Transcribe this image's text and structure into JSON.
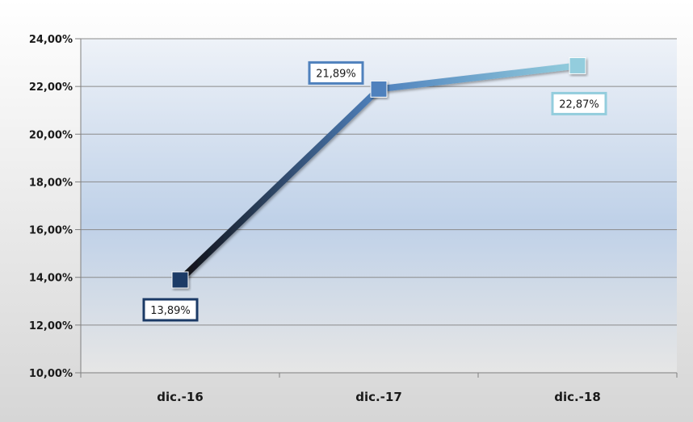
{
  "chart_data": {
    "type": "line",
    "title": "",
    "xlabel": "",
    "ylabel": "",
    "categories": [
      "dic.-16",
      "dic.-17",
      "dic.-18"
    ],
    "series": [
      {
        "values": [
          13.89,
          21.89,
          22.87
        ],
        "data_labels": [
          "13,89%",
          "21,89%",
          "22,87%"
        ],
        "point_colors": [
          "#1b3a66",
          "#4f81bd",
          "#93cddd"
        ],
        "label_positions": [
          "below",
          "left",
          "below"
        ]
      }
    ],
    "ylim": [
      10,
      24
    ],
    "y_ticks": [
      10,
      12,
      14,
      16,
      18,
      20,
      22,
      24
    ],
    "y_tick_labels": [
      "10,00%",
      "12,00%",
      "14,00%",
      "16,00%",
      "18,00%",
      "20,00%",
      "22,00%",
      "24,00%"
    ],
    "grid": true,
    "legend": "none"
  }
}
